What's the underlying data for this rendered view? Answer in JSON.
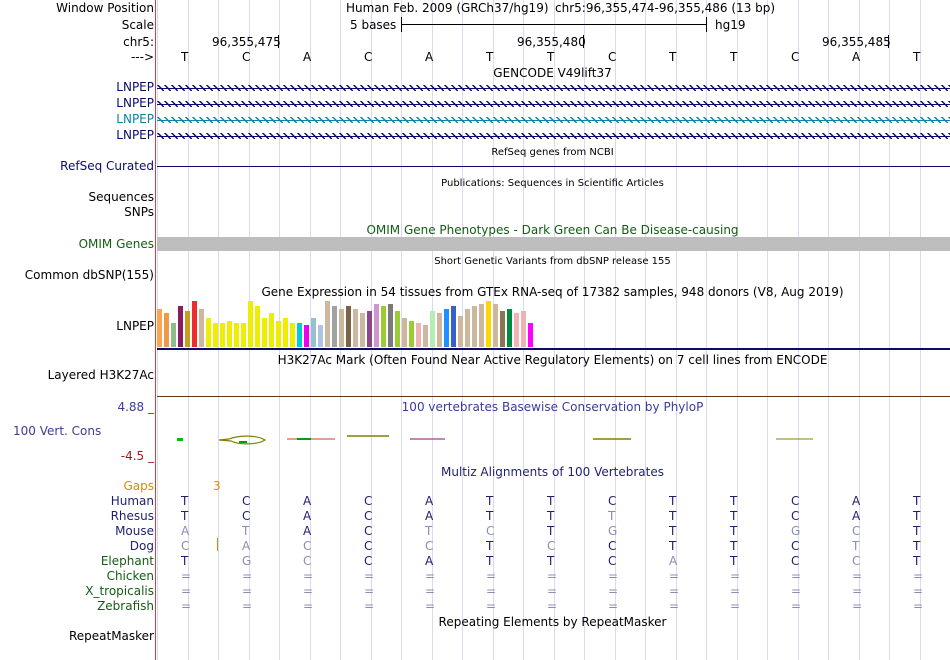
{
  "colors": {
    "gene_dark": "#0b0b6b",
    "gene_light": "#0f82a8",
    "omim_green": "#135d13",
    "orange": "#d88a00",
    "phylo_blue": "#3b3b9b",
    "phylo_red": "#9b1c1c",
    "multiz_navy": "#1f1f6f",
    "omim_bar": "#bebebe",
    "grid": "#d9d9f0",
    "left_border": "#d04040"
  },
  "header": {
    "window_label": "Window Position",
    "assembly": "Human Feb. 2009 (GRCh37/hg19)",
    "position": "chr5:96,355,474-96,355,486 (13 bp)",
    "scale_label": "Scale",
    "scale_text": "5 bases",
    "scale_db": "hg19",
    "chrom_label": "chr5:",
    "arrow_label": "--->",
    "coords": [
      "96,355,475",
      "96,355,480",
      "96,355,485"
    ],
    "bases": [
      "T",
      "C",
      "A",
      "C",
      "A",
      "T",
      "T",
      "C",
      "T",
      "T",
      "C",
      "A",
      "T"
    ]
  },
  "gencode": {
    "title": "GENCODE V49lift37",
    "genes": [
      {
        "name": "LNPEP",
        "style": "dark"
      },
      {
        "name": "LNPEP",
        "style": "dark"
      },
      {
        "name": "LNPEP",
        "style": "light"
      },
      {
        "name": "LNPEP",
        "style": "dark"
      }
    ]
  },
  "refseq": {
    "title": "RefSeq genes from NCBI",
    "label": "RefSeq Curated"
  },
  "publications": {
    "title": "Publications: Sequences in Scientific Articles",
    "label1": "Sequences",
    "label2": "SNPs"
  },
  "omim": {
    "title": "OMIM Gene Phenotypes - Dark Green Can Be Disease-causing",
    "label": "OMIM Genes"
  },
  "dbsnp": {
    "title": "Short Genetic Variants from dbSNP release 155",
    "label": "Common dbSNP(155)"
  },
  "gtex": {
    "title": "Gene Expression in 54 tissues from GTEx RNA-seq of 17382 samples, 948 donors (V8, Aug 2019)",
    "label": "LNPEP",
    "values": [
      0.8,
      0.7,
      0.5,
      0.85,
      0.75,
      0.95,
      0.8,
      0.6,
      0.5,
      0.5,
      0.55,
      0.5,
      0.5,
      0.95,
      0.85,
      0.6,
      0.7,
      0.55,
      0.6,
      0.5,
      0.5,
      0.45,
      0.6,
      0.45,
      0.95,
      0.85,
      0.8,
      0.85,
      0.8,
      0.7,
      0.75,
      0.9,
      0.85,
      0.9,
      0.75,
      0.6,
      0.55,
      0.5,
      0.45,
      0.75,
      0.7,
      0.8,
      0.85,
      0.65,
      0.8,
      0.85,
      0.9,
      0.95,
      0.9,
      0.75,
      0.8,
      0.7,
      0.75,
      0.5
    ],
    "colors": [
      "#ffa54f",
      "#ee9a49",
      "#8fbc8f",
      "#8b1c62",
      "#cd9b1d",
      "#ee2c2c",
      "#cdb79e",
      "#eeee00",
      "#eeee00",
      "#eeee00",
      "#eeee00",
      "#eeee00",
      "#eeee00",
      "#eeee00",
      "#eeee00",
      "#eeee00",
      "#eeee00",
      "#eeee00",
      "#eeee00",
      "#eeee00",
      "#00cdcd",
      "#ee00ee",
      "#9ac0cd",
      "#b0c4de",
      "#cdb79e",
      "#a2a2a2",
      "#cdb79e",
      "#7a6446",
      "#cdb79e",
      "#cdb79e",
      "#8b4789",
      "#cd96cd",
      "#9acd32",
      "#7a7a7a",
      "#9acd32",
      "#cdb79e",
      "#9acd32",
      "#eeb4b4",
      "#cdb79e",
      "#b4eeb4",
      "#cdb79e",
      "#1e90ff",
      "#3a5fcd",
      "#cdb79e",
      "#cdb79e",
      "#cdb79e",
      "#cdb79e",
      "#ffd700",
      "#cdb79e",
      "#8b7355",
      "#008b45",
      "#eeb4b4",
      "#eeb4b4",
      "#ff00ff"
    ]
  },
  "h3k27ac": {
    "title": "H3K27Ac Mark (Often Found Near Active Regulatory Elements) on 7 cell lines from ENCODE",
    "label": "Layered H3K27Ac"
  },
  "phylop": {
    "title": "100 vertebrates Basewise Conservation by PhyloP",
    "label": "100 Vert. Cons",
    "max": "4.88 _",
    "min": "-4.5 _"
  },
  "multiz": {
    "title": "Multiz Alignments of 100 Vertebrates",
    "gaps_label": "Gaps",
    "gaps_value": "3",
    "species": [
      {
        "name": "Human",
        "seq": [
          "T",
          "C",
          "A",
          "C",
          "A",
          "T",
          "T",
          "C",
          "T",
          "T",
          "C",
          "A",
          "T"
        ],
        "dim": [
          0,
          0,
          0,
          0,
          0,
          0,
          0,
          0,
          0,
          0,
          0,
          0,
          0
        ]
      },
      {
        "name": "Rhesus",
        "seq": [
          "T",
          "C",
          "A",
          "C",
          "A",
          "T",
          "T",
          "T",
          "T",
          "T",
          "C",
          "A",
          "T"
        ],
        "dim": [
          0,
          0,
          0,
          0,
          0,
          0,
          0,
          1,
          0,
          0,
          0,
          0,
          0
        ]
      },
      {
        "name": "Mouse",
        "seq": [
          "A",
          "T",
          "A",
          "C",
          "T",
          "C",
          "T",
          "G",
          "T",
          "T",
          "G",
          "C",
          "T"
        ],
        "dim": [
          1,
          1,
          0,
          0,
          1,
          1,
          0,
          1,
          0,
          0,
          1,
          1,
          0
        ]
      },
      {
        "name": "Dog",
        "seq": [
          "C",
          "A",
          "C",
          "C",
          "C",
          "T",
          "C",
          "C",
          "T",
          "T",
          "C",
          "T",
          "T"
        ],
        "dim": [
          1,
          1,
          1,
          0,
          1,
          0,
          1,
          0,
          0,
          0,
          0,
          1,
          0
        ]
      },
      {
        "name": "Elephant",
        "seq": [
          "T",
          "G",
          "C",
          "C",
          "A",
          "T",
          "T",
          "C",
          "A",
          "T",
          "C",
          "C",
          "T"
        ],
        "dim": [
          0,
          1,
          1,
          0,
          0,
          0,
          0,
          0,
          1,
          0,
          0,
          1,
          0
        ]
      },
      {
        "name": "Chicken",
        "seq": [
          "=",
          "=",
          "=",
          "=",
          "=",
          "=",
          "=",
          "=",
          "=",
          "=",
          "=",
          "=",
          "="
        ],
        "dim": [
          1,
          1,
          1,
          1,
          1,
          1,
          1,
          1,
          1,
          1,
          1,
          1,
          1
        ]
      },
      {
        "name": "X_tropicalis",
        "seq": [
          "=",
          "=",
          "=",
          "=",
          "=",
          "=",
          "=",
          "=",
          "=",
          "=",
          "=",
          "=",
          "="
        ],
        "dim": [
          1,
          1,
          1,
          1,
          1,
          1,
          1,
          1,
          1,
          1,
          1,
          1,
          1
        ]
      },
      {
        "name": "Zebrafish",
        "seq": [
          "=",
          "=",
          "=",
          "=",
          "=",
          "=",
          "=",
          "=",
          "=",
          "=",
          "=",
          "=",
          "="
        ],
        "dim": [
          1,
          1,
          1,
          1,
          1,
          1,
          1,
          1,
          1,
          1,
          1,
          1,
          1
        ]
      }
    ]
  },
  "repeatmasker": {
    "title": "Repeating Elements by RepeatMasker",
    "label": "RepeatMasker"
  }
}
